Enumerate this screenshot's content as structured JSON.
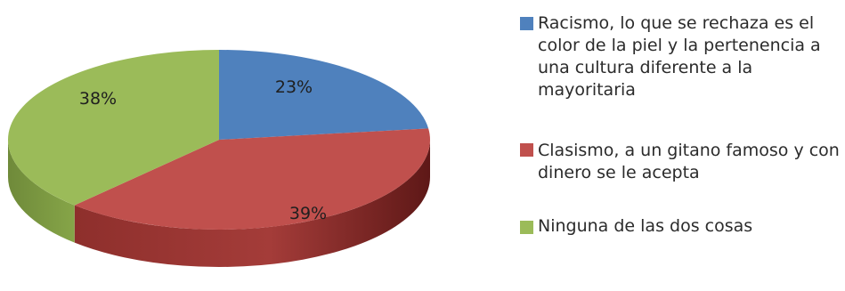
{
  "chart_data": {
    "type": "pie",
    "style": "3d",
    "title": "",
    "legend_position": "right",
    "categories": [
      "Racismo, lo que se rechaza es el color de la piel y la pertenencia a una cultura diferente a la mayoritaria",
      "Clasismo, a un gitano famoso y con dinero se le acepta",
      "Ninguna de las dos cosas"
    ],
    "values": [
      23,
      39,
      38
    ],
    "data_labels": [
      "23%",
      "39%",
      "38%"
    ],
    "colors": [
      "#4f81bd",
      "#c0504d",
      "#9bbb59"
    ]
  }
}
